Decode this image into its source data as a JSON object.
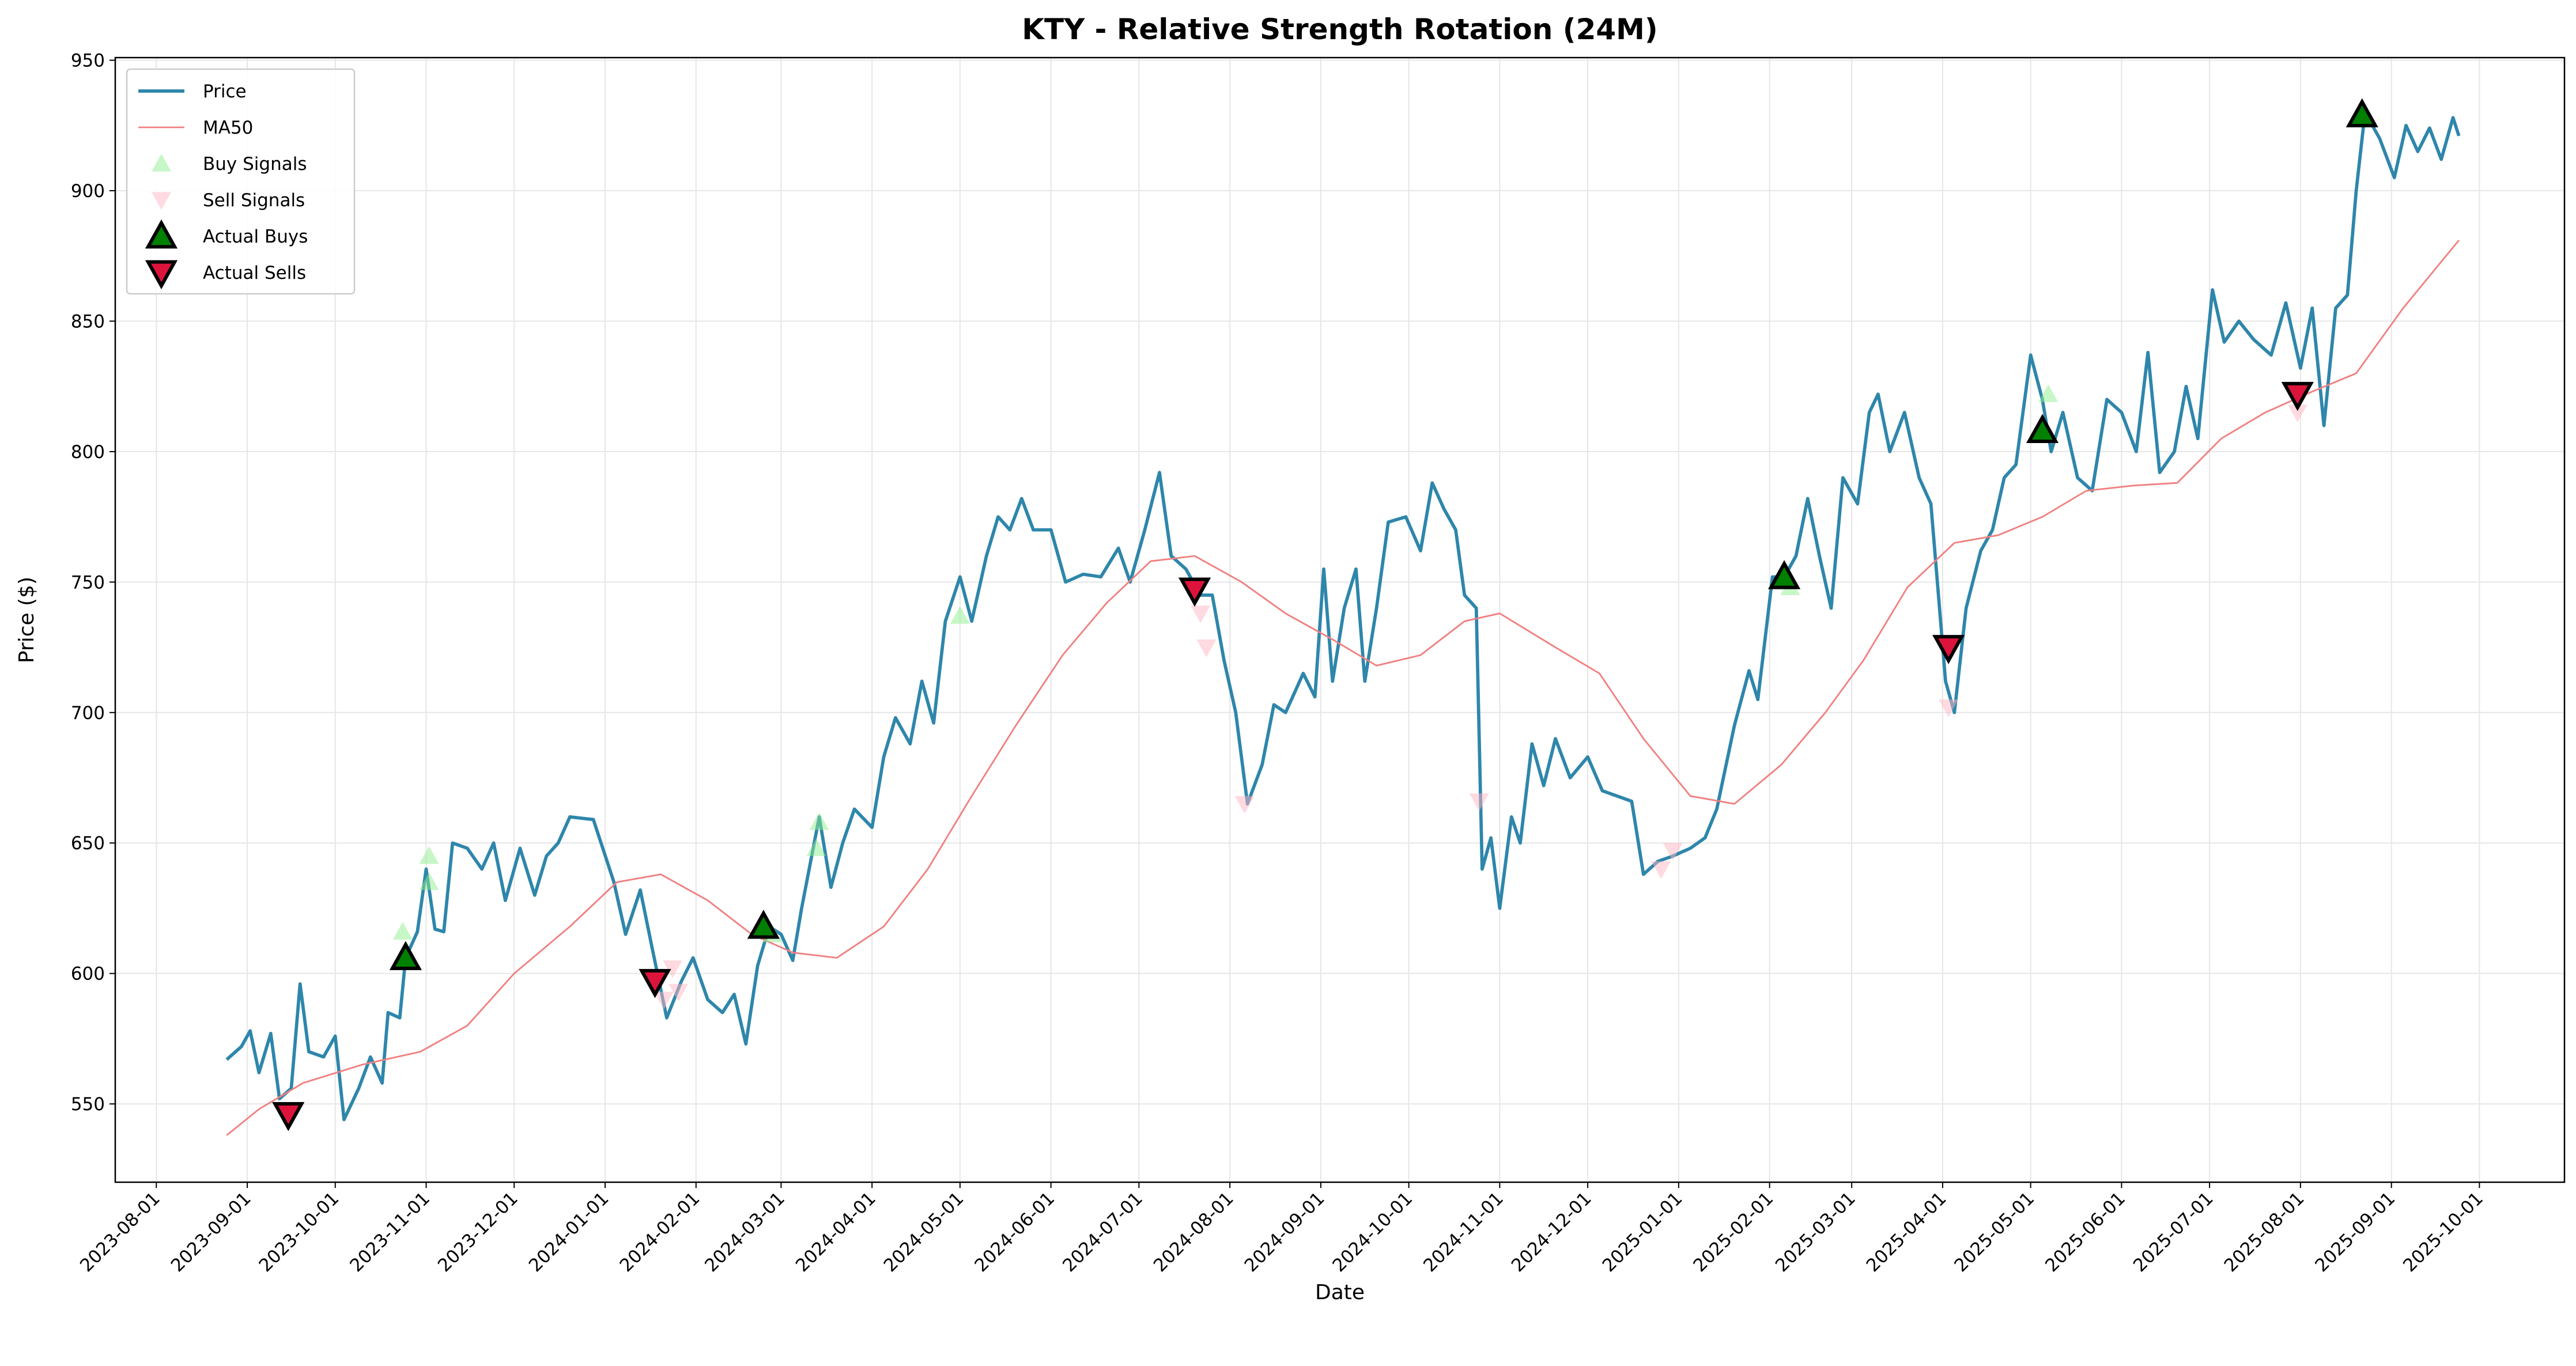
{
  "chart_data": {
    "type": "line",
    "title": "KTY - Relative Strength Rotation (24M)",
    "xlabel": "Date",
    "ylabel": "Price ($)",
    "xlim": [
      "2023-07-18",
      "2025-10-30"
    ],
    "xticks": [
      "2023-08-01",
      "2023-09-01",
      "2023-10-01",
      "2023-11-01",
      "2023-12-01",
      "2024-01-01",
      "2024-02-01",
      "2024-03-01",
      "2024-04-01",
      "2024-05-01",
      "2024-06-01",
      "2024-07-01",
      "2024-08-01",
      "2024-09-01",
      "2024-10-01",
      "2024-11-01",
      "2024-12-01",
      "2025-01-01",
      "2025-02-01",
      "2025-03-01",
      "2025-04-01",
      "2025-05-01",
      "2025-06-01",
      "2025-07-01",
      "2025-08-01",
      "2025-09-01",
      "2025-10-01"
    ],
    "ylim": [
      520,
      951
    ],
    "yticks": [
      550,
      600,
      650,
      700,
      750,
      800,
      850,
      900,
      950
    ],
    "grid": true,
    "legend": "upper left",
    "series": [
      {
        "name": "Price",
        "kind": "line",
        "color": "#2e86ab",
        "width": 2,
        "x": [
          "2023-08-25",
          "2023-08-30",
          "2023-09-02",
          "2023-09-05",
          "2023-09-09",
          "2023-09-12",
          "2023-09-16",
          "2023-09-19",
          "2023-09-22",
          "2023-09-27",
          "2023-10-01",
          "2023-10-04",
          "2023-10-09",
          "2023-10-13",
          "2023-10-17",
          "2023-10-19",
          "2023-10-23",
          "2023-10-25",
          "2023-10-29",
          "2023-11-01",
          "2023-11-04",
          "2023-11-07",
          "2023-11-10",
          "2023-11-15",
          "2023-11-20",
          "2023-11-24",
          "2023-11-28",
          "2023-12-03",
          "2023-12-08",
          "2023-12-12",
          "2023-12-16",
          "2023-12-20",
          "2023-12-28",
          "2024-01-04",
          "2024-01-08",
          "2024-01-13",
          "2024-01-17",
          "2024-01-22",
          "2024-01-27",
          "2024-01-31",
          "2024-02-05",
          "2024-02-10",
          "2024-02-14",
          "2024-02-18",
          "2024-02-22",
          "2024-02-26",
          "2024-03-01",
          "2024-03-05",
          "2024-03-08",
          "2024-03-14",
          "2024-03-18",
          "2024-03-22",
          "2024-03-26",
          "2024-04-01",
          "2024-04-05",
          "2024-04-09",
          "2024-04-14",
          "2024-04-18",
          "2024-04-22",
          "2024-04-26",
          "2024-05-01",
          "2024-05-05",
          "2024-05-10",
          "2024-05-14",
          "2024-05-18",
          "2024-05-22",
          "2024-05-26",
          "2024-06-01",
          "2024-06-06",
          "2024-06-12",
          "2024-06-18",
          "2024-06-24",
          "2024-06-28",
          "2024-07-03",
          "2024-07-08",
          "2024-07-12",
          "2024-07-17",
          "2024-07-22",
          "2024-07-26",
          "2024-07-30",
          "2024-08-03",
          "2024-08-07",
          "2024-08-12",
          "2024-08-16",
          "2024-08-20",
          "2024-08-26",
          "2024-08-30",
          "2024-09-02",
          "2024-09-05",
          "2024-09-09",
          "2024-09-13",
          "2024-09-16",
          "2024-09-20",
          "2024-09-24",
          "2024-09-30",
          "2024-10-05",
          "2024-10-09",
          "2024-10-13",
          "2024-10-17",
          "2024-10-20",
          "2024-10-24",
          "2024-10-26",
          "2024-10-29",
          "2024-11-01",
          "2024-11-05",
          "2024-11-08",
          "2024-11-12",
          "2024-11-16",
          "2024-11-20",
          "2024-11-25",
          "2024-12-01",
          "2024-12-06",
          "2024-12-11",
          "2024-12-16",
          "2024-12-20",
          "2024-12-25",
          "2024-12-30",
          "2025-01-05",
          "2025-01-10",
          "2025-01-14",
          "2025-01-20",
          "2025-01-25",
          "2025-01-28",
          "2025-02-02",
          "2025-02-06",
          "2025-02-10",
          "2025-02-14",
          "2025-02-18",
          "2025-02-22",
          "2025-02-26",
          "2025-03-03",
          "2025-03-07",
          "2025-03-10",
          "2025-03-14",
          "2025-03-19",
          "2025-03-24",
          "2025-03-28",
          "2025-04-02",
          "2025-04-05",
          "2025-04-09",
          "2025-04-14",
          "2025-04-18",
          "2025-04-22",
          "2025-04-26",
          "2025-05-01",
          "2025-05-05",
          "2025-05-08",
          "2025-05-12",
          "2025-05-17",
          "2025-05-22",
          "2025-05-27",
          "2025-06-01",
          "2025-06-06",
          "2025-06-10",
          "2025-06-14",
          "2025-06-19",
          "2025-06-23",
          "2025-06-27",
          "2025-07-02",
          "2025-07-06",
          "2025-07-11",
          "2025-07-16",
          "2025-07-22",
          "2025-07-27",
          "2025-08-01",
          "2025-08-05",
          "2025-08-09",
          "2025-08-13",
          "2025-08-17",
          "2025-08-20",
          "2025-08-23",
          "2025-08-28",
          "2025-09-02",
          "2025-09-06",
          "2025-09-10",
          "2025-09-14",
          "2025-09-18",
          "2025-09-22",
          "2025-09-24"
        ],
        "values": [
          567,
          572,
          578,
          562,
          577,
          552,
          556,
          596,
          570,
          568,
          576,
          544,
          556,
          568,
          558,
          585,
          583,
          606,
          616,
          640,
          617,
          616,
          650,
          648,
          640,
          650,
          628,
          648,
          630,
          645,
          650,
          660,
          659,
          635,
          615,
          632,
          610,
          583,
          597,
          606,
          590,
          585,
          592,
          573,
          603,
          618,
          615,
          605,
          625,
          660,
          633,
          650,
          663,
          656,
          683,
          698,
          688,
          712,
          696,
          735,
          752,
          735,
          760,
          775,
          770,
          782,
          770,
          770,
          750,
          753,
          752,
          763,
          750,
          770,
          792,
          760,
          755,
          745,
          745,
          720,
          700,
          665,
          680,
          703,
          700,
          715,
          706,
          755,
          712,
          740,
          755,
          712,
          740,
          773,
          775,
          762,
          788,
          778,
          770,
          745,
          740,
          640,
          652,
          625,
          660,
          650,
          688,
          672,
          690,
          675,
          683,
          670,
          668,
          666,
          638,
          643,
          645,
          648,
          652,
          663,
          695,
          716,
          705,
          752,
          752,
          760,
          782,
          760,
          740,
          790,
          780,
          815,
          822,
          800,
          815,
          790,
          780,
          712,
          700,
          740,
          762,
          770,
          790,
          795,
          837,
          820,
          800,
          815,
          790,
          785,
          820,
          815,
          800,
          838,
          792,
          800,
          825,
          805,
          862,
          842,
          850,
          843,
          837,
          857,
          832,
          855,
          810,
          855,
          860,
          900,
          930,
          920,
          905,
          925,
          915,
          924,
          912,
          928,
          921
        ]
      },
      {
        "name": "MA50",
        "kind": "line",
        "color": "#f08080",
        "width": 1,
        "x": [
          "2023-08-25",
          "2023-09-05",
          "2023-09-20",
          "2023-10-10",
          "2023-10-30",
          "2023-11-15",
          "2023-12-01",
          "2023-12-20",
          "2024-01-05",
          "2024-01-20",
          "2024-02-05",
          "2024-02-20",
          "2024-03-05",
          "2024-03-20",
          "2024-04-05",
          "2024-04-20",
          "2024-05-05",
          "2024-05-20",
          "2024-06-05",
          "2024-06-20",
          "2024-07-05",
          "2024-07-20",
          "2024-08-05",
          "2024-08-20",
          "2024-09-05",
          "2024-09-20",
          "2024-10-05",
          "2024-10-20",
          "2024-11-01",
          "2024-11-20",
          "2024-12-05",
          "2024-12-20",
          "2025-01-05",
          "2025-01-20",
          "2025-02-05",
          "2025-02-20",
          "2025-03-05",
          "2025-03-20",
          "2025-04-05",
          "2025-04-20",
          "2025-05-05",
          "2025-05-20",
          "2025-06-05",
          "2025-06-20",
          "2025-07-05",
          "2025-07-20",
          "2025-08-05",
          "2025-08-20",
          "2025-09-05",
          "2025-09-24"
        ],
        "values": [
          538,
          548,
          558,
          565,
          570,
          580,
          600,
          618,
          635,
          638,
          628,
          615,
          608,
          606,
          618,
          640,
          668,
          695,
          722,
          742,
          758,
          760,
          750,
          738,
          728,
          718,
          722,
          735,
          738,
          725,
          715,
          690,
          668,
          665,
          680,
          700,
          720,
          748,
          765,
          768,
          775,
          785,
          787,
          788,
          805,
          815,
          823,
          830,
          855,
          881
        ]
      },
      {
        "name": "Buy Signals",
        "kind": "scatter",
        "marker": "up",
        "color": "#90ee90",
        "edge": "none",
        "alpha": 0.5,
        "size": 34,
        "x": [
          "2023-10-24",
          "2023-11-02",
          "2023-11-02",
          "2024-02-27",
          "2024-03-13",
          "2024-03-14",
          "2024-05-01",
          "2025-02-08",
          "2025-05-07",
          "2025-08-22"
        ],
        "values": [
          616,
          635,
          645,
          615,
          648,
          658,
          737,
          748,
          822,
          930
        ]
      },
      {
        "name": "Sell Signals",
        "kind": "scatter",
        "marker": "down",
        "color": "#ffb6c1",
        "edge": "none",
        "alpha": 0.5,
        "size": 34,
        "x": [
          "2024-01-21",
          "2024-01-24",
          "2024-01-26",
          "2024-07-22",
          "2024-07-24",
          "2024-08-06",
          "2024-10-25",
          "2024-12-26",
          "2024-12-30",
          "2025-04-03",
          "2025-07-31"
        ],
        "values": [
          590,
          602,
          593,
          738,
          725,
          665,
          666,
          640,
          647,
          702,
          815
        ]
      },
      {
        "name": "Actual Buys",
        "kind": "scatter",
        "marker": "up",
        "color": "#008000",
        "edge": "#000000",
        "alpha": 1,
        "size": 46,
        "x": [
          "2023-10-25",
          "2024-02-24",
          "2025-02-06",
          "2025-05-05",
          "2025-08-22"
        ],
        "values": [
          606,
          618,
          752,
          808,
          929
        ]
      },
      {
        "name": "Actual Sells",
        "kind": "scatter",
        "marker": "down",
        "color": "#dc143c",
        "edge": "#000000",
        "alpha": 1,
        "size": 46,
        "x": [
          "2023-09-15",
          "2024-01-18",
          "2024-07-20",
          "2025-04-03",
          "2025-07-31"
        ],
        "values": [
          546,
          597,
          747,
          725,
          822
        ]
      }
    ]
  }
}
